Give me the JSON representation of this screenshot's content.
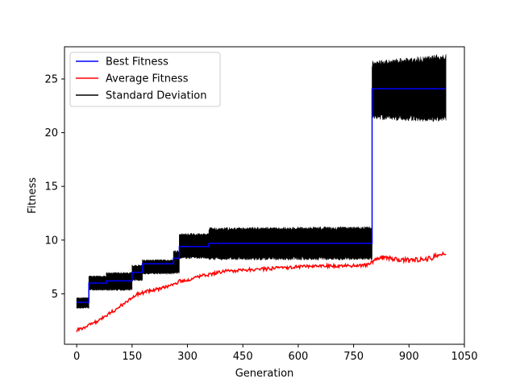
{
  "chart_data": {
    "type": "line",
    "title": "",
    "xlabel": "Generation",
    "ylabel": "Fitness",
    "xlim": [
      -33,
      1050
    ],
    "ylim": [
      0.3,
      28.0
    ],
    "xticks": [
      0,
      150,
      300,
      450,
      600,
      750,
      900,
      1050
    ],
    "yticks": [
      5,
      10,
      15,
      20,
      25
    ],
    "grid": false,
    "legend_position": "top-left",
    "series": [
      {
        "name": "Best Fitness",
        "color": "#0000ff",
        "kind": "step",
        "x": [
          0,
          33,
          33,
          80,
          80,
          150,
          150,
          178,
          178,
          262,
          262,
          278,
          278,
          358,
          358,
          800,
          800,
          1000
        ],
        "y": [
          4.2,
          4.2,
          6.0,
          6.0,
          6.2,
          6.2,
          7.0,
          7.0,
          7.8,
          7.8,
          8.3,
          8.3,
          9.4,
          9.4,
          9.7,
          9.7,
          24.1,
          24.1
        ]
      },
      {
        "name": "Average Fitness",
        "color": "#ff0000",
        "kind": "line",
        "x": [
          0,
          20,
          40,
          60,
          80,
          100,
          120,
          140,
          160,
          180,
          200,
          230,
          260,
          280,
          300,
          330,
          360,
          400,
          450,
          500,
          550,
          600,
          650,
          700,
          750,
          790,
          800,
          820,
          850,
          880,
          900,
          930,
          960,
          980,
          1000
        ],
        "y": [
          1.6,
          1.8,
          2.2,
          2.5,
          3.0,
          3.4,
          3.9,
          4.4,
          4.9,
          5.1,
          5.3,
          5.5,
          5.8,
          6.2,
          6.3,
          6.6,
          6.8,
          7.1,
          7.2,
          7.3,
          7.4,
          7.5,
          7.6,
          7.6,
          7.6,
          7.7,
          8.0,
          8.4,
          8.3,
          8.2,
          8.1,
          8.2,
          8.3,
          8.7,
          8.7
        ]
      },
      {
        "name": "Standard Deviation",
        "color": "#000000",
        "kind": "band",
        "x": [
          0,
          33,
          33,
          80,
          80,
          150,
          150,
          178,
          178,
          262,
          262,
          278,
          278,
          358,
          358,
          800,
          800,
          1000
        ],
        "y_low": [
          3.7,
          3.7,
          5.4,
          5.4,
          5.4,
          5.4,
          6.3,
          6.3,
          6.9,
          6.9,
          7.0,
          7.0,
          8.4,
          8.4,
          8.3,
          8.3,
          21.5,
          21.3
        ],
        "y_high": [
          4.6,
          4.6,
          6.6,
          6.6,
          6.9,
          6.9,
          7.6,
          7.6,
          8.1,
          8.1,
          8.9,
          8.9,
          10.5,
          10.5,
          11.0,
          11.1,
          26.4,
          27.0
        ]
      }
    ]
  }
}
